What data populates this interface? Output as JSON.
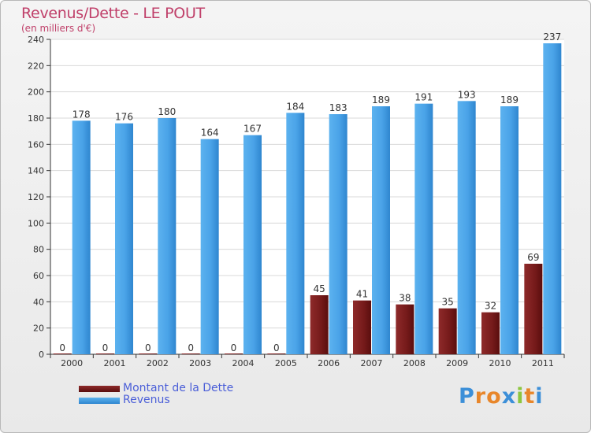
{
  "title": "Revenus/Dette - LE POUT",
  "subtitle": "(en milliers d'€)",
  "logo_text": "Proxiti",
  "chart_data": {
    "type": "bar",
    "categories": [
      "2000",
      "2001",
      "2002",
      "2003",
      "2004",
      "2005",
      "2006",
      "2007",
      "2008",
      "2009",
      "2010",
      "2011"
    ],
    "series": [
      {
        "name": "Montant de la Dette",
        "color": "#7a1c1c",
        "values": [
          0,
          0,
          0,
          0,
          0,
          0,
          45,
          41,
          38,
          35,
          32,
          69
        ]
      },
      {
        "name": "Revenus",
        "color": "#4aa3e8",
        "values": [
          178,
          176,
          180,
          164,
          167,
          184,
          183,
          189,
          191,
          193,
          189,
          237
        ]
      }
    ],
    "ylim": [
      0,
      240
    ],
    "yticks": [
      0,
      20,
      40,
      60,
      80,
      100,
      120,
      140,
      160,
      180,
      200,
      220,
      240
    ],
    "grid": true,
    "legend_position": "bottom-left"
  }
}
